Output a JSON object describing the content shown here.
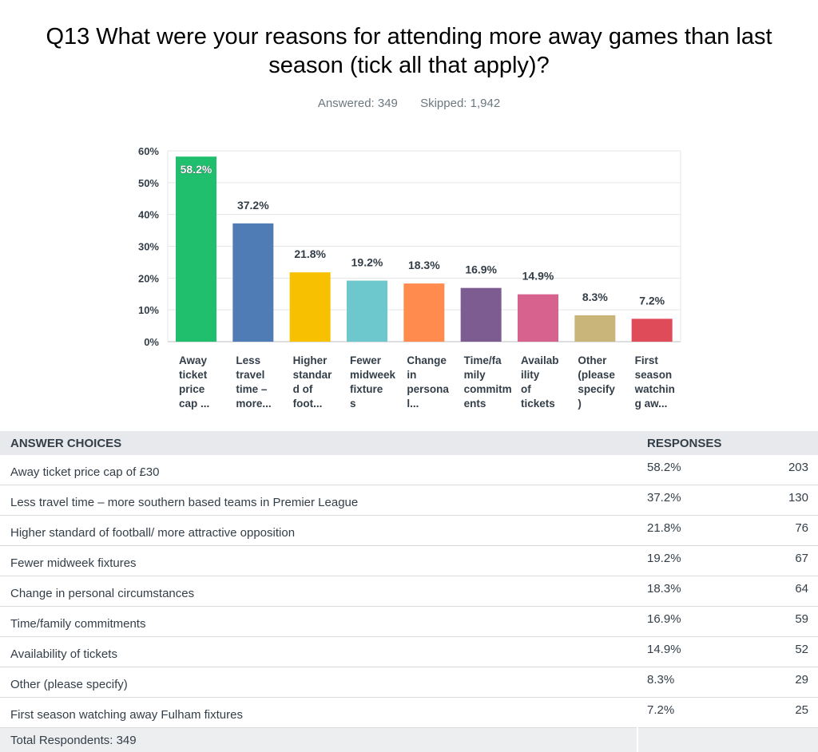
{
  "question": {
    "title_line1": "Q13 What were your reasons for attending more away games than last",
    "title_line2": "season (tick all that apply)?",
    "answered": "Answered: 349",
    "skipped": "Skipped: 1,942"
  },
  "chart_data": {
    "type": "bar",
    "ylim": [
      0,
      60
    ],
    "yticks": [
      "0%",
      "10%",
      "20%",
      "30%",
      "40%",
      "50%",
      "60%"
    ],
    "grid": true,
    "categories": [
      [
        "Away",
        "ticket",
        "price",
        "cap ..."
      ],
      [
        "Less",
        "travel",
        "time –",
        "more..."
      ],
      [
        "Higher",
        "standar",
        "d of",
        "foot..."
      ],
      [
        "Fewer",
        "midweek",
        "fixture",
        "s"
      ],
      [
        "Change",
        "in",
        "persona",
        "l..."
      ],
      [
        "Time/fa",
        "mily",
        "commitm",
        "ents"
      ],
      [
        "Availab",
        "ility",
        "of",
        "tickets"
      ],
      [
        "Other",
        "(please",
        "specify",
        ")"
      ],
      [
        "First",
        "season",
        "watchin",
        "g aw..."
      ]
    ],
    "values": [
      58.2,
      37.2,
      21.8,
      19.2,
      18.3,
      16.9,
      14.9,
      8.3,
      7.2
    ],
    "labels": [
      "58.2%",
      "37.2%",
      "21.8%",
      "19.2%",
      "18.3%",
      "16.9%",
      "14.9%",
      "8.3%",
      "7.2%"
    ],
    "colors": [
      "#1fbf6e",
      "#507cb6",
      "#f7c000",
      "#6cc8cd",
      "#ff8b4f",
      "#7d5c91",
      "#d7628d",
      "#c9b47a",
      "#e04b5a"
    ]
  },
  "table": {
    "header_choices": "ANSWER CHOICES",
    "header_responses": "RESPONSES",
    "rows": [
      {
        "choice": "Away ticket price cap of £30",
        "pct": "58.2%",
        "count": "203"
      },
      {
        "choice": "Less travel time – more southern based teams in Premier League",
        "pct": "37.2%",
        "count": "130"
      },
      {
        "choice": "Higher standard of football/ more attractive opposition",
        "pct": "21.8%",
        "count": "76"
      },
      {
        "choice": "Fewer midweek fixtures",
        "pct": "19.2%",
        "count": "67"
      },
      {
        "choice": "Change in personal circumstances",
        "pct": "18.3%",
        "count": "64"
      },
      {
        "choice": "Time/family commitments",
        "pct": "16.9%",
        "count": "59"
      },
      {
        "choice": "Availability of tickets",
        "pct": "14.9%",
        "count": "52"
      },
      {
        "choice": "Other (please specify)",
        "pct": "8.3%",
        "count": "29"
      },
      {
        "choice": "First season watching away Fulham fixtures",
        "pct": "7.2%",
        "count": "25"
      }
    ],
    "total": "Total Respondents: 349"
  }
}
